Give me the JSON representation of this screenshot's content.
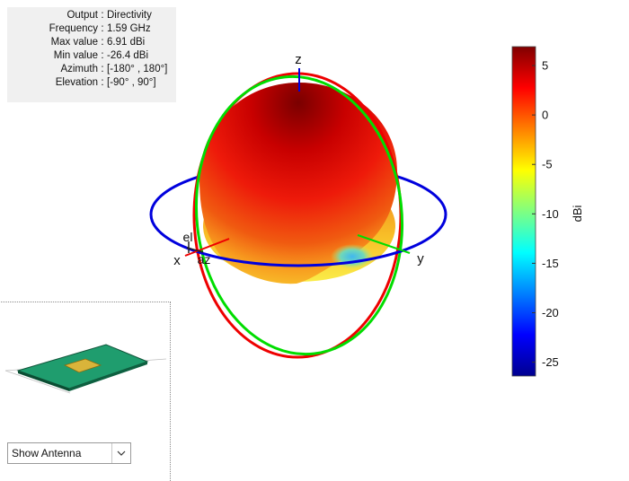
{
  "info_panel": {
    "rows": [
      {
        "label": "Output",
        "value": "Directivity"
      },
      {
        "label": "Frequency",
        "value": "1.59 GHz"
      },
      {
        "label": "Max value",
        "value": "6.91 dBi"
      },
      {
        "label": "Min value",
        "value": "-26.4 dBi"
      },
      {
        "label": "Azimuth",
        "value": "[-180° , 180°]"
      },
      {
        "label": "Elevation",
        "value": "[-90° , 90°]"
      }
    ],
    "separator": ":"
  },
  "axes": {
    "z_label": "z",
    "x_label": "x",
    "y_label": "y",
    "el_label": "el",
    "az_label": "az"
  },
  "colorbar": {
    "label": "dBi",
    "ticks": [
      "5",
      "0",
      "-5",
      "-10",
      "-15",
      "-20",
      "-25"
    ],
    "min": -26.4,
    "max": 6.91
  },
  "view_control": {
    "selected": "Show Antenna"
  },
  "colors": {
    "azimuth_ring": "#0000dd",
    "xz_ring": "#ee0000",
    "yz_ring": "#00dd00",
    "patch_board": "#22aa77",
    "patch_element": "#d9b43a"
  }
}
